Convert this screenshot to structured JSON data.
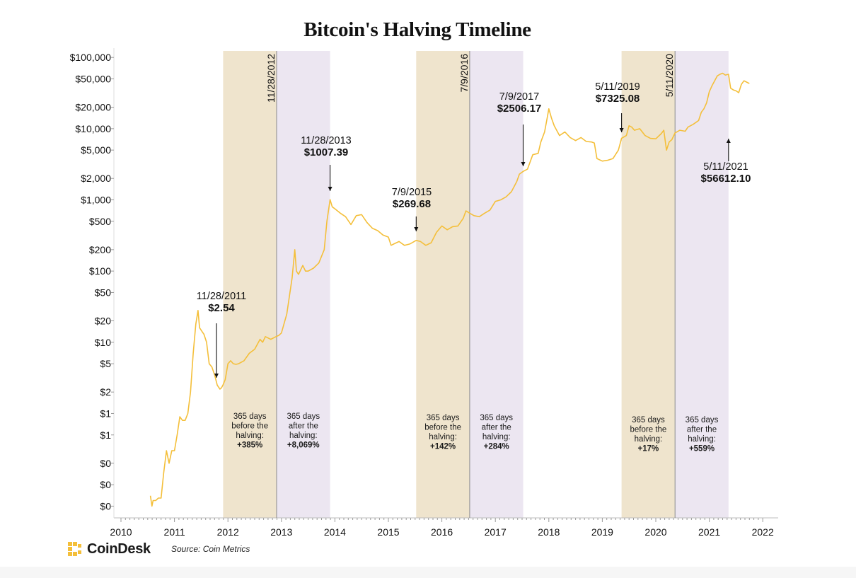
{
  "title": "Bitcoin's Halving Timeline",
  "source": "Source: Coin Metrics",
  "brand": "CoinDesk",
  "colors": {
    "line": "#f4bf3a",
    "before_band": "#efe4cd",
    "after_band": "#ece6f1",
    "halving_line": "#9a9a9a",
    "logo": "#f4bf3a"
  },
  "chart_data": {
    "type": "line",
    "title": "Bitcoin's Halving Timeline",
    "xlabel": "",
    "ylabel": "",
    "y_scale": "log",
    "x_range": [
      2010.0,
      2022.0
    ],
    "y_ticks": [
      {
        "value": 100000,
        "label": "$100,000"
      },
      {
        "value": 50000,
        "label": "$50,000"
      },
      {
        "value": 20000,
        "label": "$20,000"
      },
      {
        "value": 10000,
        "label": "$10,000"
      },
      {
        "value": 5000,
        "label": "$5,000"
      },
      {
        "value": 2000,
        "label": "$2,000"
      },
      {
        "value": 1000,
        "label": "$1,000"
      },
      {
        "value": 500,
        "label": "$500"
      },
      {
        "value": 200,
        "label": "$200"
      },
      {
        "value": 100,
        "label": "$100"
      },
      {
        "value": 50,
        "label": "$50"
      },
      {
        "value": 20,
        "label": "$20"
      },
      {
        "value": 10,
        "label": "$10"
      },
      {
        "value": 5,
        "label": "$5"
      },
      {
        "value": 2,
        "label": "$2"
      },
      {
        "value": 1,
        "label": "$1"
      },
      {
        "value": 0.5,
        "label": "$1"
      },
      {
        "value": 0.2,
        "label": "$0"
      },
      {
        "value": 0.1,
        "label": "$0"
      },
      {
        "value": 0.05,
        "label": "$0"
      }
    ],
    "x_ticks": [
      "2010",
      "2011",
      "2012",
      "2013",
      "2014",
      "2015",
      "2016",
      "2017",
      "2018",
      "2019",
      "2020",
      "2021",
      "2022"
    ],
    "halvings": [
      {
        "label": "11/28/2012",
        "x": 2012.91
      },
      {
        "label": "7/9/2016",
        "x": 2016.52
      },
      {
        "label": "5/11/2020",
        "x": 2020.36
      }
    ],
    "bands": [
      {
        "kind": "before",
        "from": 2011.91,
        "to": 2012.91,
        "lines": [
          "365 days",
          "before the",
          "halving:"
        ],
        "pct": "+385%"
      },
      {
        "kind": "after",
        "from": 2012.91,
        "to": 2013.91,
        "lines": [
          "365 days",
          "after the",
          "halving:"
        ],
        "pct": "+8,069%"
      },
      {
        "kind": "before",
        "from": 2015.52,
        "to": 2016.52,
        "lines": [
          "365 days",
          "before the",
          "halving:"
        ],
        "pct": "+142%"
      },
      {
        "kind": "after",
        "from": 2016.52,
        "to": 2017.52,
        "lines": [
          "365 days",
          "after the",
          "halving:"
        ],
        "pct": "+284%"
      },
      {
        "kind": "before",
        "from": 2019.36,
        "to": 2020.36,
        "lines": [
          "365 days",
          "before the",
          "halving:"
        ],
        "pct": "+17%"
      },
      {
        "kind": "after",
        "from": 2020.36,
        "to": 2021.36,
        "lines": [
          "365 days",
          "after the",
          "halving:"
        ],
        "pct": "+559%"
      }
    ],
    "annotations": [
      {
        "date": "11/28/2011",
        "price": "$2.54",
        "x": 2011.91,
        "y": 2.54
      },
      {
        "date": "11/28/2013",
        "price": "$1007.39",
        "x": 2013.91,
        "y": 1007.39
      },
      {
        "date": "7/9/2015",
        "price": "$269.68",
        "x": 2015.52,
        "y": 269.68
      },
      {
        "date": "7/9/2017",
        "price": "$2506.17",
        "x": 2017.52,
        "y": 2506.17
      },
      {
        "date": "5/11/2019",
        "price": "$7325.08",
        "x": 2019.36,
        "y": 7325.08
      },
      {
        "date": "5/11/2021",
        "price": "$56612.10",
        "x": 2021.36,
        "y": 56612.1
      }
    ],
    "series": [
      {
        "x": [
          2010.55,
          2010.58,
          2010.6,
          2010.65,
          2010.7,
          2010.75,
          2010.8,
          2010.85,
          2010.9,
          2010.95,
          2011.0,
          2011.05,
          2011.1,
          2011.15,
          2011.2,
          2011.25,
          2011.3,
          2011.35,
          2011.4,
          2011.44,
          2011.47,
          2011.52,
          2011.55,
          2011.6,
          2011.65,
          2011.7,
          2011.75,
          2011.8,
          2011.85,
          2011.88,
          2011.91,
          2011.95,
          2012.0,
          2012.05,
          2012.1,
          2012.15,
          2012.2,
          2012.3,
          2012.4,
          2012.5,
          2012.6,
          2012.65,
          2012.7,
          2012.8,
          2012.9,
          2012.95,
          2013.0,
          2013.1,
          2013.2,
          2013.25,
          2013.28,
          2013.32,
          2013.4,
          2013.45,
          2013.5,
          2013.6,
          2013.7,
          2013.8,
          2013.85,
          2013.91,
          2013.95,
          2014.0,
          2014.1,
          2014.2,
          2014.3,
          2014.4,
          2014.5,
          2014.6,
          2014.7,
          2014.8,
          2014.9,
          2015.0,
          2015.05,
          2015.1,
          2015.2,
          2015.3,
          2015.4,
          2015.52,
          2015.6,
          2015.7,
          2015.8,
          2015.9,
          2016.0,
          2016.1,
          2016.2,
          2016.3,
          2016.4,
          2016.45,
          2016.52,
          2016.6,
          2016.7,
          2016.8,
          2016.9,
          2017.0,
          2017.1,
          2017.2,
          2017.3,
          2017.4,
          2017.45,
          2017.52,
          2017.6,
          2017.7,
          2017.8,
          2017.85,
          2017.92,
          2017.96,
          2018.0,
          2018.05,
          2018.1,
          2018.2,
          2018.3,
          2018.4,
          2018.5,
          2018.6,
          2018.7,
          2018.8,
          2018.85,
          2018.9,
          2019.0,
          2019.1,
          2019.2,
          2019.3,
          2019.36,
          2019.45,
          2019.5,
          2019.55,
          2019.6,
          2019.7,
          2019.8,
          2019.9,
          2020.0,
          2020.1,
          2020.15,
          2020.2,
          2020.25,
          2020.3,
          2020.36,
          2020.45,
          2020.55,
          2020.6,
          2020.7,
          2020.8,
          2020.85,
          2020.9,
          2020.95,
          2021.0,
          2021.05,
          2021.1,
          2021.15,
          2021.2,
          2021.25,
          2021.3,
          2021.36,
          2021.4,
          2021.45,
          2021.5,
          2021.55,
          2021.6,
          2021.65,
          2021.7,
          2021.75
        ],
        "y": [
          0.07,
          0.05,
          0.06,
          0.06,
          0.065,
          0.065,
          0.15,
          0.3,
          0.2,
          0.3,
          0.3,
          0.5,
          0.9,
          0.8,
          0.8,
          1.0,
          2.0,
          7.0,
          18.0,
          28.0,
          16.0,
          14.0,
          13.0,
          10.0,
          5.0,
          4.5,
          3.5,
          2.5,
          2.2,
          2.3,
          2.54,
          3.0,
          5.0,
          5.5,
          5.0,
          4.9,
          5.0,
          5.5,
          7.0,
          8.0,
          11.0,
          10.0,
          12.0,
          11.0,
          12.0,
          12.5,
          13.5,
          25.0,
          80.0,
          200.0,
          100.0,
          90.0,
          120.0,
          100.0,
          100.0,
          110.0,
          130.0,
          200.0,
          500.0,
          1007.39,
          800.0,
          750.0,
          650.0,
          580.0,
          450.0,
          600.0,
          620.0,
          480.0,
          400.0,
          370.0,
          320.0,
          300.0,
          230.0,
          240.0,
          260.0,
          230.0,
          240.0,
          269.68,
          260.0,
          230.0,
          250.0,
          350.0,
          430.0,
          380.0,
          420.0,
          430.0,
          550.0,
          700.0,
          650.0,
          600.0,
          580.0,
          650.0,
          720.0,
          950.0,
          1000.0,
          1100.0,
          1300.0,
          1800.0,
          2300.0,
          2506.17,
          2700.0,
          4300.0,
          4500.0,
          6500.0,
          9000.0,
          13000.0,
          19000.0,
          14000.0,
          11000.0,
          8000.0,
          9000.0,
          7500.0,
          6800.0,
          7500.0,
          6600.0,
          6500.0,
          6300.0,
          3800.0,
          3500.0,
          3600.0,
          3800.0,
          5000.0,
          7325.08,
          8000.0,
          11000.0,
          10500.0,
          9500.0,
          10000.0,
          8000.0,
          7300.0,
          7200.0,
          8500.0,
          9500.0,
          5000.0,
          6500.0,
          7000.0,
          8700.0,
          9500.0,
          9200.0,
          10500.0,
          11500.0,
          13000.0,
          17000.0,
          19000.0,
          23000.0,
          33000.0,
          40000.0,
          47000.0,
          55000.0,
          58000.0,
          60000.0,
          56612.1,
          58000.0,
          37000.0,
          35000.0,
          34000.0,
          32000.0,
          42000.0,
          47000.0,
          45000.0,
          43000.0
        ]
      }
    ]
  }
}
